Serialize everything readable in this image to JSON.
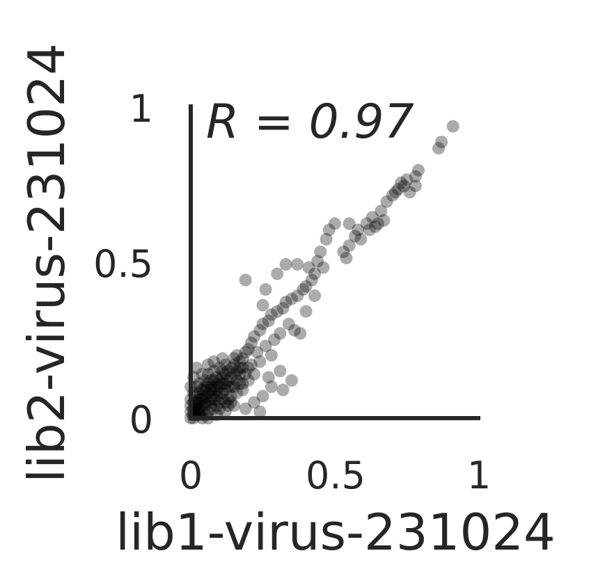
{
  "chart_data": {
    "type": "scatter",
    "xlabel": "lib1-virus-231024",
    "ylabel": "lib2-virus-231024",
    "xlim": [
      0,
      1
    ],
    "ylim": [
      0,
      1
    ],
    "xticks": [
      "0",
      "0.5",
      "1"
    ],
    "yticks": [
      "0",
      "0.5",
      "1"
    ],
    "annotation": "R = 0.97",
    "grid": false,
    "color": "#000000",
    "series": [
      {
        "points": [
          [
            0.91,
            0.93
          ],
          [
            0.87,
            0.88
          ],
          [
            0.86,
            0.86
          ],
          [
            0.79,
            0.79
          ],
          [
            0.78,
            0.77
          ],
          [
            0.75,
            0.76
          ],
          [
            0.73,
            0.75
          ],
          [
            0.72,
            0.73
          ],
          [
            0.71,
            0.72
          ],
          [
            0.74,
            0.74
          ],
          [
            0.78,
            0.74
          ],
          [
            0.76,
            0.72
          ],
          [
            0.7,
            0.71
          ],
          [
            0.68,
            0.69
          ],
          [
            0.66,
            0.66
          ],
          [
            0.67,
            0.63
          ],
          [
            0.65,
            0.62
          ],
          [
            0.64,
            0.61
          ],
          [
            0.62,
            0.6
          ],
          [
            0.61,
            0.62
          ],
          [
            0.63,
            0.64
          ],
          [
            0.58,
            0.6
          ],
          [
            0.57,
            0.58
          ],
          [
            0.59,
            0.57
          ],
          [
            0.55,
            0.55
          ],
          [
            0.53,
            0.53
          ],
          [
            0.54,
            0.51
          ],
          [
            0.5,
            0.62
          ],
          [
            0.55,
            0.62
          ],
          [
            0.48,
            0.6
          ],
          [
            0.47,
            0.57
          ],
          [
            0.45,
            0.53
          ],
          [
            0.44,
            0.5
          ],
          [
            0.46,
            0.48
          ],
          [
            0.43,
            0.46
          ],
          [
            0.42,
            0.44
          ],
          [
            0.4,
            0.42
          ],
          [
            0.39,
            0.41
          ],
          [
            0.37,
            0.39
          ],
          [
            0.35,
            0.38
          ],
          [
            0.33,
            0.37
          ],
          [
            0.32,
            0.35
          ],
          [
            0.3,
            0.34
          ],
          [
            0.28,
            0.33
          ],
          [
            0.27,
            0.31
          ],
          [
            0.25,
            0.3
          ],
          [
            0.24,
            0.28
          ],
          [
            0.22,
            0.26
          ],
          [
            0.21,
            0.24
          ],
          [
            0.2,
            0.22
          ],
          [
            0.36,
            0.28
          ],
          [
            0.34,
            0.3
          ],
          [
            0.31,
            0.27
          ],
          [
            0.29,
            0.25
          ],
          [
            0.26,
            0.23
          ],
          [
            0.23,
            0.21
          ],
          [
            0.19,
            0.21
          ],
          [
            0.18,
            0.19
          ],
          [
            0.17,
            0.18
          ],
          [
            0.16,
            0.2
          ],
          [
            0.15,
            0.17
          ],
          [
            0.14,
            0.16
          ],
          [
            0.13,
            0.15
          ],
          [
            0.12,
            0.14
          ],
          [
            0.11,
            0.13
          ],
          [
            0.1,
            0.12
          ],
          [
            0.09,
            0.11
          ],
          [
            0.08,
            0.1
          ],
          [
            0.07,
            0.09
          ],
          [
            0.06,
            0.08
          ],
          [
            0.05,
            0.07
          ],
          [
            0.04,
            0.06
          ],
          [
            0.03,
            0.05
          ],
          [
            0.02,
            0.04
          ],
          [
            0.01,
            0.03
          ],
          [
            0.19,
            0.44
          ],
          [
            0.33,
            0.49
          ],
          [
            0.37,
            0.49
          ],
          [
            0.41,
            0.48
          ],
          [
            0.43,
            0.39
          ],
          [
            0.3,
            0.46
          ],
          [
            0.26,
            0.41
          ],
          [
            0.25,
            0.36
          ],
          [
            0.38,
            0.27
          ],
          [
            0.4,
            0.34
          ],
          [
            0.28,
            0.2
          ],
          [
            0.24,
            0.18
          ],
          [
            0.22,
            0.14
          ],
          [
            0.27,
            0.13
          ],
          [
            0.31,
            0.15
          ],
          [
            0.35,
            0.12
          ],
          [
            0.32,
            0.09
          ],
          [
            0.28,
            0.1
          ],
          [
            0.25,
            0.07
          ],
          [
            0.22,
            0.05
          ],
          [
            0.19,
            0.03
          ],
          [
            0.24,
            0.02
          ],
          [
            0.15,
            0.04
          ],
          [
            0.12,
            0.02
          ],
          [
            0.09,
            0.01
          ],
          [
            0.18,
            0.11
          ],
          [
            0.16,
            0.08
          ],
          [
            0.14,
            0.07
          ],
          [
            0.13,
            0.1
          ],
          [
            0.11,
            0.08
          ],
          [
            0.1,
            0.05
          ],
          [
            0.08,
            0.06
          ],
          [
            0.07,
            0.04
          ],
          [
            0.06,
            0.02
          ],
          [
            0.05,
            0.04
          ],
          [
            0.04,
            0.02
          ],
          [
            0.03,
            0.01
          ],
          [
            0.02,
            0.02
          ],
          [
            0.01,
            0.01
          ],
          [
            0.0,
            0.0
          ],
          [
            0.0,
            0.02
          ],
          [
            0.01,
            0.05
          ],
          [
            0.02,
            0.07
          ],
          [
            0.0,
            0.1
          ],
          [
            0.01,
            0.13
          ],
          [
            0.02,
            0.16
          ],
          [
            0.03,
            0.11
          ],
          [
            0.04,
            0.09
          ],
          [
            0.05,
            0.12
          ],
          [
            0.06,
            0.14
          ],
          [
            0.07,
            0.12
          ],
          [
            0.08,
            0.15
          ],
          [
            0.09,
            0.13
          ],
          [
            0.1,
            0.16
          ],
          [
            0.11,
            0.15
          ],
          [
            0.12,
            0.11
          ],
          [
            0.13,
            0.12
          ],
          [
            0.14,
            0.13
          ],
          [
            0.15,
            0.14
          ],
          [
            0.16,
            0.15
          ],
          [
            0.17,
            0.14
          ],
          [
            0.18,
            0.16
          ],
          [
            0.08,
            0.18
          ],
          [
            0.11,
            0.19
          ],
          [
            0.06,
            0.17
          ],
          [
            0.04,
            0.14
          ],
          [
            0.02,
            0.1
          ],
          [
            0.03,
            0.08
          ],
          [
            0.05,
            0.1
          ],
          [
            0.07,
            0.07
          ],
          [
            0.09,
            0.09
          ],
          [
            0.1,
            0.08
          ],
          [
            0.12,
            0.09
          ],
          [
            0.13,
            0.06
          ],
          [
            0.15,
            0.1
          ],
          [
            0.16,
            0.12
          ],
          [
            0.17,
            0.11
          ],
          [
            0.14,
            0.1
          ],
          [
            0.11,
            0.11
          ],
          [
            0.08,
            0.12
          ],
          [
            0.06,
            0.11
          ],
          [
            0.05,
            0.09
          ],
          [
            0.04,
            0.07
          ],
          [
            0.03,
            0.06
          ],
          [
            0.02,
            0.05
          ],
          [
            0.01,
            0.08
          ],
          [
            0.0,
            0.06
          ],
          [
            0.0,
            0.04
          ],
          [
            0.01,
            0.02
          ],
          [
            0.03,
            0.03
          ],
          [
            0.05,
            0.05
          ],
          [
            0.07,
            0.06
          ],
          [
            0.09,
            0.07
          ],
          [
            0.11,
            0.06
          ],
          [
            0.13,
            0.04
          ],
          [
            0.14,
            0.05
          ],
          [
            0.06,
            0.05
          ],
          [
            0.08,
            0.03
          ],
          [
            0.1,
            0.03
          ],
          [
            0.12,
            0.05
          ],
          [
            0.07,
            0.1
          ],
          [
            0.09,
            0.04
          ],
          [
            0.04,
            0.04
          ],
          [
            0.02,
            0.03
          ],
          [
            0.03,
            0.02
          ],
          [
            0.01,
            0.0
          ],
          [
            0.02,
            0.01
          ],
          [
            0.05,
            0.01
          ],
          [
            0.06,
            0.0
          ],
          [
            0.04,
            0.0
          ],
          [
            0.15,
            0.19
          ],
          [
            0.17,
            0.16
          ],
          [
            0.12,
            0.17
          ],
          [
            0.1,
            0.1
          ],
          [
            0.08,
            0.08
          ],
          [
            0.2,
            0.16
          ],
          [
            0.21,
            0.17
          ],
          [
            0.19,
            0.14
          ],
          [
            0.2,
            0.12
          ],
          [
            0.18,
            0.09
          ]
        ]
      }
    ]
  }
}
